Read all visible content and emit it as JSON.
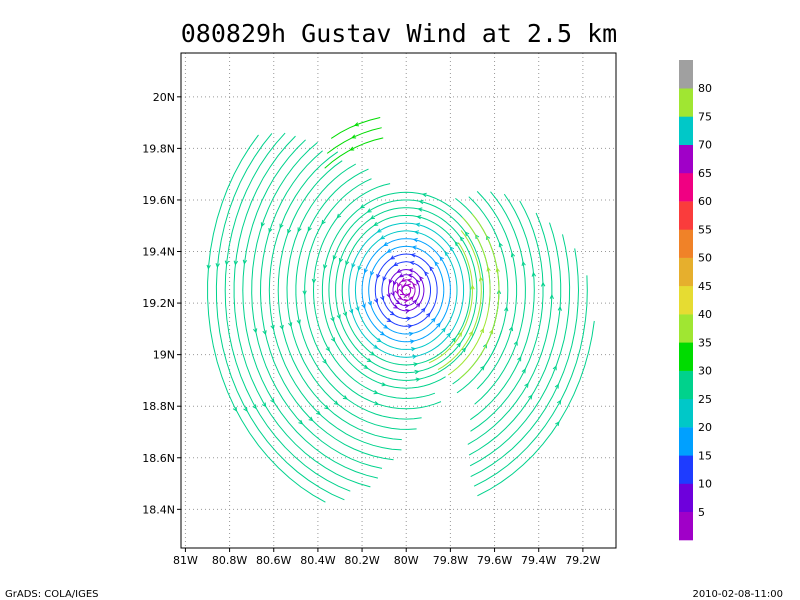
{
  "chart_data": {
    "type": "streamline",
    "title": "080829h Gustav Wind at 2.5 km",
    "xlabel": "",
    "ylabel": "",
    "xlim": [
      -81.02,
      -79.05
    ],
    "ylim": [
      18.25,
      20.17
    ],
    "x_ticks": [
      {
        "value": -81.0,
        "label": "81W"
      },
      {
        "value": -80.8,
        "label": "80.8W"
      },
      {
        "value": -80.6,
        "label": "80.6W"
      },
      {
        "value": -80.4,
        "label": "80.4W"
      },
      {
        "value": -80.2,
        "label": "80.2W"
      },
      {
        "value": -80.0,
        "label": "80W"
      },
      {
        "value": -79.8,
        "label": "79.8W"
      },
      {
        "value": -79.6,
        "label": "79.6W"
      },
      {
        "value": -79.4,
        "label": "79.4W"
      },
      {
        "value": -79.2,
        "label": "79.2W"
      }
    ],
    "y_ticks": [
      {
        "value": 18.4,
        "label": "18.4N"
      },
      {
        "value": 18.6,
        "label": "18.6N"
      },
      {
        "value": 18.8,
        "label": "18.8N"
      },
      {
        "value": 19.0,
        "label": "19N"
      },
      {
        "value": 19.2,
        "label": "19.2N"
      },
      {
        "value": 19.4,
        "label": "19.4N"
      },
      {
        "value": 19.6,
        "label": "19.6N"
      },
      {
        "value": 19.8,
        "label": "19.8N"
      },
      {
        "value": 20.0,
        "label": "20N"
      }
    ],
    "grid": true,
    "center": {
      "lon": -80.0,
      "lat": 19.25
    },
    "colorbar": {
      "placement": "right",
      "levels": [
        {
          "label": "",
          "color": "#a000c8"
        },
        {
          "label": "5",
          "color": "#6e00dc"
        },
        {
          "label": "10",
          "color": "#1e3cff"
        },
        {
          "label": "15",
          "color": "#00a0ff"
        },
        {
          "label": "20",
          "color": "#00c8c8"
        },
        {
          "label": "25",
          "color": "#00d28c"
        },
        {
          "label": "30",
          "color": "#00dc00"
        },
        {
          "label": "35",
          "color": "#a0e632"
        },
        {
          "label": "40",
          "color": "#e6dc32"
        },
        {
          "label": "45",
          "color": "#e6af2d"
        },
        {
          "label": "50",
          "color": "#f08228"
        },
        {
          "label": "55",
          "color": "#fa3c3c"
        },
        {
          "label": "60",
          "color": "#f00082"
        },
        {
          "label": "65",
          "color": "#a000c8"
        },
        {
          "label": "70",
          "color": "#00c8c8"
        },
        {
          "label": "75",
          "color": "#a0e632"
        },
        {
          "label": "80",
          "color": "#a0a0a0"
        }
      ]
    },
    "rings": [
      {
        "r_deg": 0.02,
        "color": "#a000c8",
        "arcs": [
          [
            0,
            360
          ]
        ]
      },
      {
        "r_deg": 0.04,
        "color": "#a000c8",
        "arcs": [
          [
            0,
            360
          ]
        ]
      },
      {
        "r_deg": 0.06,
        "color": "#6e00dc",
        "arcs": [
          [
            0,
            360
          ]
        ]
      },
      {
        "r_deg": 0.08,
        "color": "#6e00dc",
        "arcs": [
          [
            0,
            360
          ]
        ]
      },
      {
        "r_deg": 0.11,
        "color": "#1e3cff",
        "arcs": [
          [
            0,
            360
          ]
        ]
      },
      {
        "r_deg": 0.14,
        "color": "#1e3cff",
        "arcs": [
          [
            0,
            360
          ]
        ]
      },
      {
        "r_deg": 0.17,
        "color": "#00a0ff",
        "arcs": [
          [
            0,
            360
          ]
        ]
      },
      {
        "r_deg": 0.2,
        "color": "#00a0ff",
        "arcs": [
          [
            0,
            360
          ]
        ]
      },
      {
        "r_deg": 0.23,
        "color": "#00c8c8",
        "arcs": [
          [
            0,
            360
          ]
        ]
      },
      {
        "r_deg": 0.26,
        "color": "#00c8c8",
        "arcs": [
          [
            0,
            360
          ]
        ]
      },
      {
        "r_deg": 0.29,
        "color": "#00d28c",
        "arcs": [
          [
            0,
            360
          ]
        ]
      },
      {
        "r_deg": 0.32,
        "color": "#00d28c",
        "arcs": [
          [
            0,
            360
          ]
        ]
      },
      {
        "r_deg": 0.35,
        "color": "#00d28c",
        "arcs": [
          [
            0,
            360
          ]
        ]
      },
      {
        "r_deg": 0.38,
        "color": "#00d28c",
        "arcs": [
          [
            -10,
            300
          ]
        ]
      },
      {
        "r_deg": 0.42,
        "color": "#00d28c",
        "arcs": [
          [
            100,
            290
          ],
          [
            300,
            360
          ],
          [
            -30,
            60
          ]
        ]
      },
      {
        "r_deg": 0.46,
        "color": "#00d28c",
        "arcs": [
          [
            110,
            290
          ],
          [
            300,
            340
          ],
          [
            -40,
            55
          ]
        ]
      },
      {
        "r_deg": 0.5,
        "color": "#00d28c",
        "arcs": [
          [
            110,
            280
          ],
          [
            -50,
            50
          ]
        ]
      },
      {
        "r_deg": 0.54,
        "color": "#00d28c",
        "arcs": [
          [
            115,
            275
          ],
          [
            -55,
            45
          ]
        ]
      },
      {
        "r_deg": 0.58,
        "color": "#00d28c",
        "arcs": [
          [
            120,
            270
          ],
          [
            -60,
            40
          ]
        ]
      },
      {
        "r_deg": 0.62,
        "color": "#00d28c",
        "arcs": [
          [
            120,
            268
          ],
          [
            -62,
            35
          ]
        ]
      },
      {
        "r_deg": 0.66,
        "color": "#00d28c",
        "arcs": [
          [
            125,
            265
          ],
          [
            -65,
            30
          ]
        ]
      },
      {
        "r_deg": 0.7,
        "color": "#00d28c",
        "arcs": [
          [
            125,
            262
          ],
          [
            -66,
            25
          ]
        ]
      },
      {
        "r_deg": 0.74,
        "color": "#00d28c",
        "arcs": [
          [
            128,
            260
          ],
          [
            -67,
            20
          ]
        ]
      },
      {
        "r_deg": 0.78,
        "color": "#00d28c",
        "arcs": [
          [
            130,
            258
          ],
          [
            -68,
            12
          ]
        ]
      },
      {
        "r_deg": 0.82,
        "color": "#00d28c",
        "arcs": [
          [
            132,
            255
          ],
          [
            -68,
            5
          ]
        ]
      },
      {
        "r_deg": 0.86,
        "color": "#00d28c",
        "arcs": [
          [
            135,
            252
          ],
          [
            -68,
            -5
          ]
        ]
      },
      {
        "r_deg": 0.9,
        "color": "#00d28c",
        "arcs": [
          [
            138,
            248
          ]
        ]
      }
    ],
    "strong_wind_arcs": [
      {
        "r_deg": 0.3,
        "color": "#a0e632",
        "arc": [
          -70,
          40
        ]
      },
      {
        "r_deg": 0.34,
        "color": "#a0e632",
        "arc": [
          -65,
          45
        ]
      },
      {
        "r_deg": 0.38,
        "color": "#a0e632",
        "arc": [
          -60,
          50
        ]
      },
      {
        "r_deg": 0.42,
        "color": "#a0e632",
        "arc": [
          -55,
          45
        ]
      },
      {
        "r_deg": 0.6,
        "color": "#00dc00",
        "arc": [
          100,
          130
        ]
      },
      {
        "r_deg": 0.64,
        "color": "#00dc00",
        "arc": [
          100,
          125
        ]
      },
      {
        "r_deg": 0.68,
        "color": "#00dc00",
        "arc": [
          100,
          120
        ]
      }
    ]
  },
  "footer": {
    "left": "GrADS: COLA/IGES",
    "right": "2010-02-08-11:00"
  }
}
